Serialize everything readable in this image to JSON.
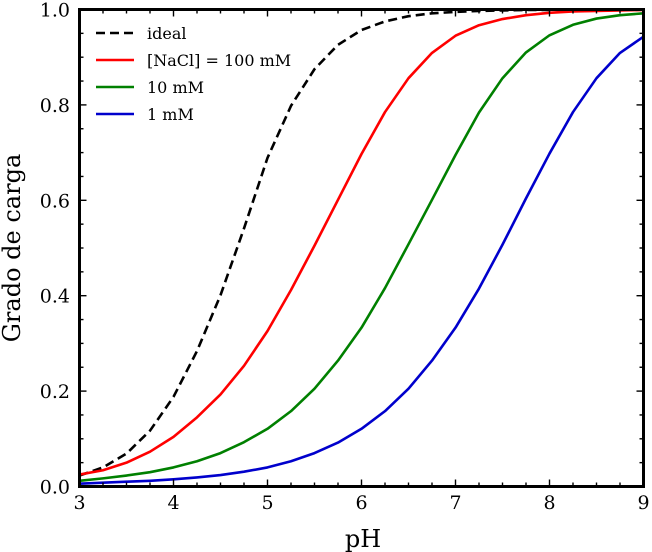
{
  "chart_data": {
    "type": "line",
    "title": "",
    "xlabel": "pH",
    "ylabel": "Grado de carga",
    "xlim": [
      3,
      9
    ],
    "ylim": [
      0.0,
      1.0
    ],
    "xticks": [
      3,
      4,
      5,
      6,
      7,
      8,
      9
    ],
    "xtick_labels": [
      "3",
      "4",
      "5",
      "6",
      "7",
      "8",
      "9"
    ],
    "yticks": [
      0.0,
      0.2,
      0.4,
      0.6,
      0.8,
      1.0
    ],
    "ytick_labels": [
      "0.0",
      "0.2",
      "0.4",
      "0.6",
      "0.8",
      "1.0"
    ],
    "grid": false,
    "legend_position": "top-left",
    "x": [
      3.0,
      3.25,
      3.5,
      3.75,
      4.0,
      4.25,
      4.5,
      4.75,
      5.0,
      5.25,
      5.5,
      5.75,
      6.0,
      6.25,
      6.5,
      6.75,
      7.0,
      7.25,
      7.5,
      7.75,
      8.0,
      8.25,
      8.5,
      8.75,
      9.0
    ],
    "series": [
      {
        "name": "ideal",
        "color": "#000000",
        "dash": true,
        "values": [
          0.023,
          0.04,
          0.069,
          0.117,
          0.188,
          0.284,
          0.401,
          0.541,
          0.689,
          0.798,
          0.875,
          0.926,
          0.957,
          0.975,
          0.986,
          0.992,
          0.995,
          0.997,
          0.998,
          0.999,
          0.999,
          1.0,
          1.0,
          1.0,
          1.0
        ]
      },
      {
        "name": "[NaCl] = 100 mM",
        "color": "#ff0000",
        "dash": false,
        "values": [
          0.025,
          0.034,
          0.05,
          0.073,
          0.104,
          0.145,
          0.193,
          0.253,
          0.326,
          0.412,
          0.505,
          0.601,
          0.697,
          0.785,
          0.856,
          0.909,
          0.945,
          0.967,
          0.98,
          0.988,
          0.993,
          0.996,
          0.997,
          0.998,
          0.999
        ]
      },
      {
        "name": "10 mM",
        "color": "#008000",
        "dash": false,
        "values": [
          0.012,
          0.017,
          0.023,
          0.03,
          0.04,
          0.053,
          0.07,
          0.093,
          0.121,
          0.158,
          0.205,
          0.264,
          0.333,
          0.416,
          0.508,
          0.601,
          0.695,
          0.784,
          0.856,
          0.91,
          0.946,
          0.968,
          0.981,
          0.988,
          0.992
        ]
      },
      {
        "name": "1 mM",
        "color": "#0000cc",
        "dash": false,
        "values": [
          0.006,
          0.008,
          0.01,
          0.012,
          0.015,
          0.019,
          0.024,
          0.031,
          0.04,
          0.053,
          0.07,
          0.092,
          0.121,
          0.158,
          0.205,
          0.264,
          0.333,
          0.415,
          0.507,
          0.604,
          0.698,
          0.785,
          0.856,
          0.909,
          0.943
        ]
      }
    ]
  }
}
